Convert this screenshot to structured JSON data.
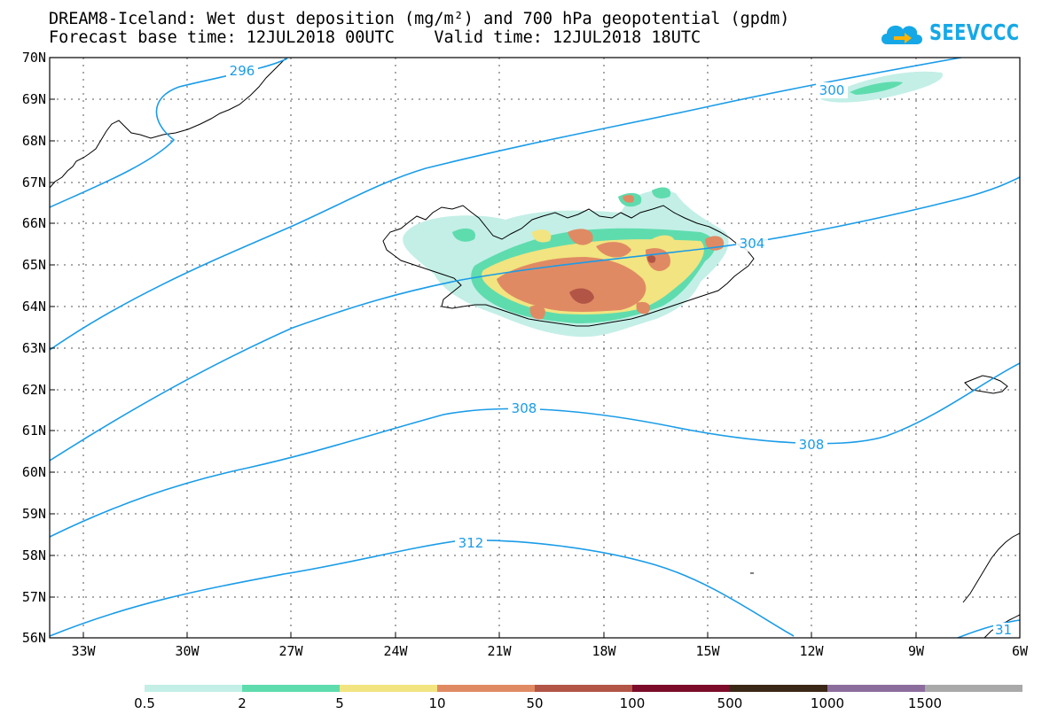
{
  "title": {
    "line1": "DREAM8-Iceland: Wet dust deposition (mg/m²) and 700 hPa geopotential (gpdm)",
    "line2": "Forecast base time: 12JUL2018 00UTC    Valid time: 12JUL2018 18UTC"
  },
  "logo": {
    "text": "SEEVCCC",
    "icon": "cloud-arrow-icon",
    "color": "#16a8e6"
  },
  "map": {
    "lat_labels": [
      "70N",
      "69N",
      "68N",
      "67N",
      "66N",
      "65N",
      "64N",
      "63N",
      "62N",
      "61N",
      "60N",
      "59N",
      "58N",
      "57N",
      "56N"
    ],
    "lon_labels": [
      "33W",
      "30W",
      "27W",
      "24W",
      "21W",
      "18W",
      "15W",
      "12W",
      "9W",
      "6W"
    ],
    "lat_range": [
      56,
      70
    ],
    "lon_range": [
      -34.4,
      -6
    ],
    "grid": "dotted",
    "contour_color": "#1a9ce8",
    "contour_labels": [
      {
        "value": "296",
        "lon": -31.3,
        "lat": 69.65
      },
      {
        "value": "300",
        "lon": -10.3,
        "lat": 69.2
      },
      {
        "value": "304",
        "lon": -13.9,
        "lat": 65.5
      },
      {
        "value": "308",
        "lon": -19.9,
        "lat": 61.55
      },
      {
        "value": "308",
        "lon": -12.3,
        "lat": 60.7
      },
      {
        "value": "312",
        "lon": -22.6,
        "lat": 58.3
      },
      {
        "value": "31",
        "lon": -6.55,
        "lat": 56.2
      }
    ]
  },
  "legend": {
    "labels": [
      "0.5",
      "2",
      "5",
      "10",
      "50",
      "100",
      "500",
      "1000",
      "1500"
    ],
    "colors": [
      "#c3efe7",
      "#5fdcae",
      "#f2e480",
      "#e08a64",
      "#b25546",
      "#7c0c2a",
      "#3b2716",
      "#8b6d9c",
      "#a9a9a9"
    ]
  }
}
